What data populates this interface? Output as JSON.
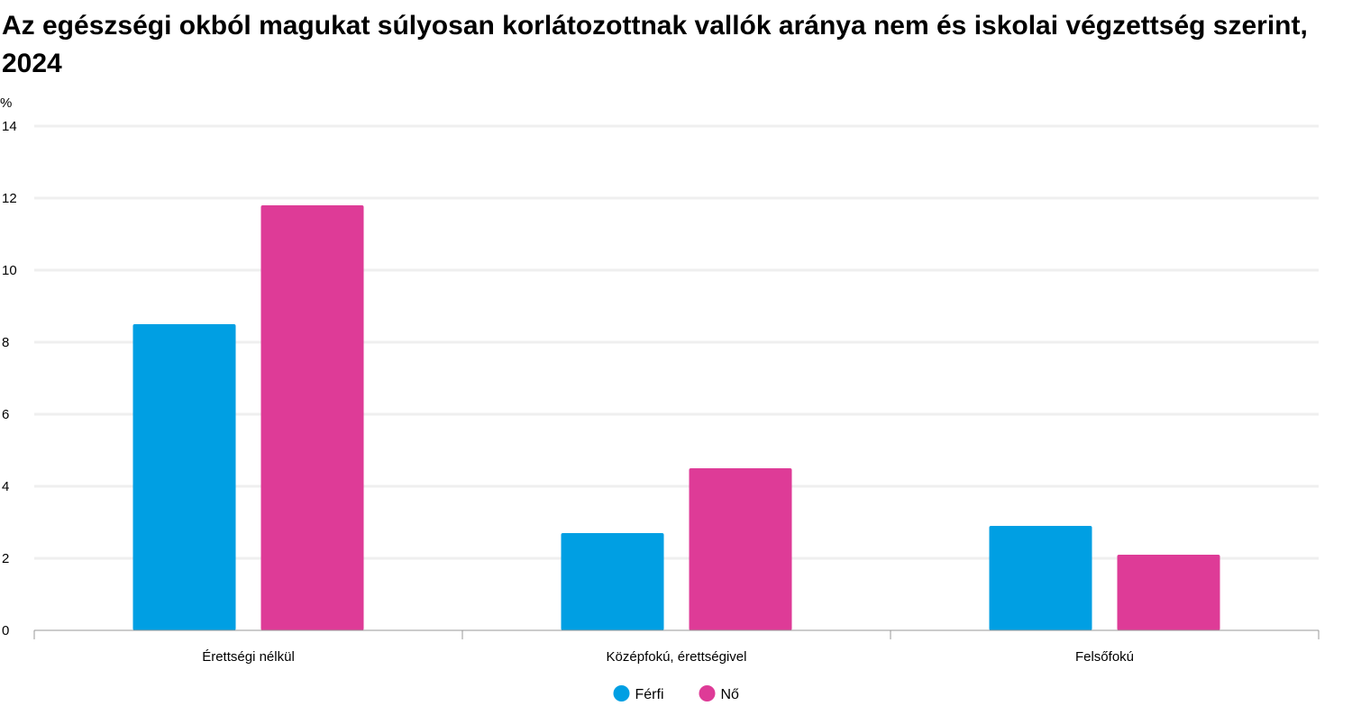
{
  "chart_data": {
    "type": "bar",
    "title": "Az egészségi okból magukat súlyosan korlátozottnak vallók aránya nem és iskolai végzettség szerint, 2024",
    "ylabel": "%",
    "xlabel": "",
    "ylim": [
      0,
      14
    ],
    "yticks": [
      0,
      2,
      4,
      6,
      8,
      10,
      12,
      14
    ],
    "grid": true,
    "legend_position": "bottom",
    "categories": [
      "Érettségi nélkül",
      "Középfokú, érettségivel",
      "Felsőfokú"
    ],
    "series": [
      {
        "name": "Férfi",
        "color": "#009fe3",
        "values": [
          8.5,
          2.7,
          2.9
        ]
      },
      {
        "name": "Nő",
        "color": "#de3b97",
        "values": [
          11.8,
          4.5,
          2.1
        ]
      }
    ]
  }
}
